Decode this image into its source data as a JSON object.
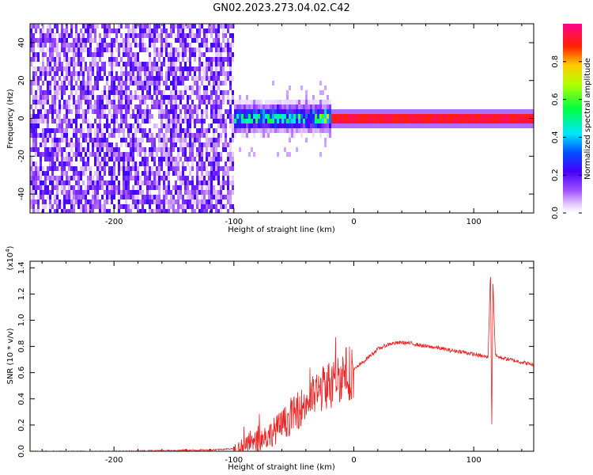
{
  "title": "GN02.2023.273.04.02.C42",
  "chart_data": [
    {
      "type": "heatmap",
      "title": "GN02.2023.273.04.02.C42",
      "xlabel": "Height of straight line (km)",
      "ylabel": "Frequency (Hz)",
      "xlim": [
        -270,
        150
      ],
      "ylim": [
        -50,
        50
      ],
      "xticks": [
        -200,
        -100,
        0,
        100
      ],
      "xtick_labels": [
        "-200",
        "-100",
        "0",
        "100"
      ],
      "yticks": [
        -40,
        -20,
        0,
        20,
        40
      ],
      "ytick_labels": [
        "-40",
        "-20",
        "0",
        "20",
        "40"
      ],
      "colorbar": {
        "label": "Normalized spectral amplitude",
        "range": [
          0,
          1
        ],
        "ticks": [
          0.0,
          0.2,
          0.4,
          0.6,
          0.8
        ],
        "tick_labels": [
          "0.0",
          "0.2",
          "0.4",
          "0.6",
          "0.8"
        ],
        "colormap": [
          "#ffffff",
          "#7a00ff",
          "#0000ff",
          "#00ffff",
          "#00ff00",
          "#ffff00",
          "#ff0000",
          "#ff0080"
        ]
      },
      "regions": [
        {
          "x_range": [
            -270,
            -100
          ],
          "description": "broadband noise across all frequencies",
          "amplitude": 0.15
        },
        {
          "x_range": [
            -100,
            -20
          ],
          "description": "signal emerging near 0 Hz with spread",
          "amplitude": 0.45
        },
        {
          "x_range": [
            -20,
            150
          ],
          "description": "narrow strong line at 0 Hz",
          "amplitude": 0.95
        }
      ],
      "line_center_hz": 0
    },
    {
      "type": "line",
      "xlabel": "Height of straight line (km)",
      "ylabel": "SNR (10 * v/v)",
      "y_scale_label": "(x10^4)",
      "xlim": [
        -270,
        150
      ],
      "ylim": [
        0,
        1.45
      ],
      "xticks": [
        -200,
        -100,
        0,
        100
      ],
      "xtick_labels": [
        "-200",
        "-100",
        "0",
        "100"
      ],
      "yticks": [
        0.0,
        0.2,
        0.4,
        0.6,
        0.8,
        1.0,
        1.2,
        1.4
      ],
      "ytick_labels": [
        "0.0",
        "0.2",
        "0.4",
        "0.6",
        "0.8",
        "1.0",
        "1.2",
        "1.4"
      ],
      "color": "#ee2222",
      "series": [
        {
          "x": [
            -270,
            -200,
            -120,
            -100,
            -90,
            -80,
            -70,
            -60,
            -50,
            -40,
            -30,
            -20,
            -10,
            0,
            10,
            20,
            30,
            40,
            50,
            60,
            70,
            80,
            90,
            100,
            110,
            112,
            114,
            115,
            116,
            118,
            120,
            130,
            140,
            150
          ],
          "y": [
            0.0,
            0.0,
            0.01,
            0.02,
            0.04,
            0.08,
            0.13,
            0.2,
            0.28,
            0.37,
            0.45,
            0.52,
            0.58,
            0.62,
            0.7,
            0.78,
            0.82,
            0.83,
            0.82,
            0.8,
            0.79,
            0.77,
            0.76,
            0.74,
            0.72,
            0.72,
            1.4,
            0.15,
            1.3,
            0.74,
            0.72,
            0.7,
            0.68,
            0.66
          ]
        }
      ]
    }
  ]
}
